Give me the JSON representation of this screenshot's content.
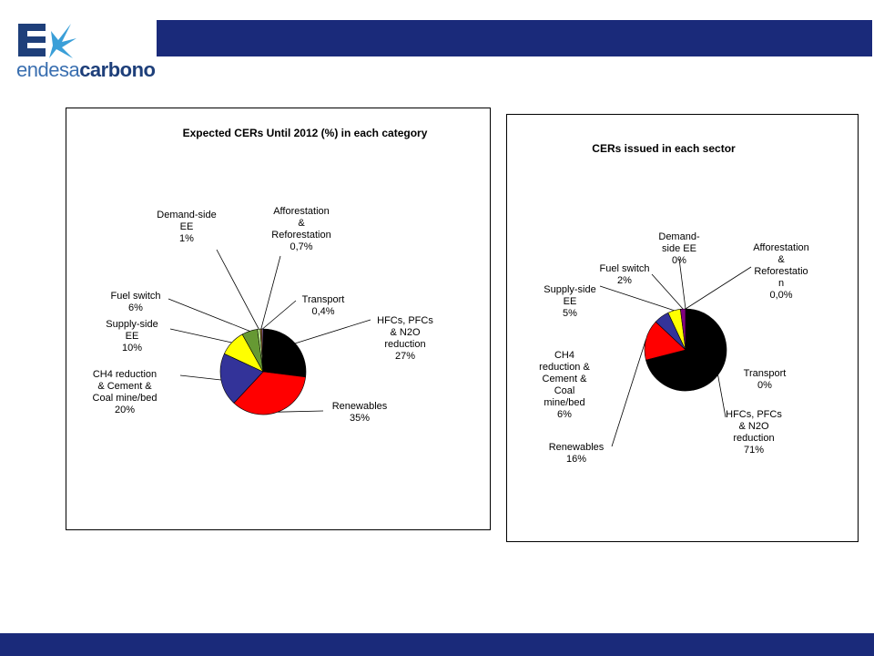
{
  "logo": {
    "name_part1": "endesa",
    "name_part2": "carbono"
  },
  "colors": {
    "brand_bar": "#1a2a7a"
  },
  "chart_data": [
    {
      "type": "pie",
      "title": "Expected CERs Until 2012 (%) in each category",
      "slices": [
        {
          "label": "HFCs, PFCs & N2O reduction",
          "value": 27,
          "value_label": "27%",
          "color": "#000000"
        },
        {
          "label": "Renewables",
          "value": 35,
          "value_label": "35%",
          "color": "#ff0000"
        },
        {
          "label": "CH4 reduction & Cement & Coal mine/bed",
          "value": 20,
          "value_label": "20%",
          "color": "#333399"
        },
        {
          "label": "Supply-side EE",
          "value": 10,
          "value_label": "10%",
          "color": "#ffff00"
        },
        {
          "label": "Fuel switch",
          "value": 6,
          "value_label": "6%",
          "color": "#669933"
        },
        {
          "label": "Demand-side EE",
          "value": 1,
          "value_label": "1%",
          "color": "#ccff99"
        },
        {
          "label": "Afforestation & Reforestation",
          "value": 0.7,
          "value_label": "0,7%",
          "color": "#996633"
        },
        {
          "label": "Transport",
          "value": 0.4,
          "value_label": "0,4%",
          "color": "#cc99ff"
        }
      ]
    },
    {
      "type": "pie",
      "title": "CERs issued in each sector",
      "slices": [
        {
          "label": "HFCs, PFCs & N2O reduction",
          "value": 71,
          "value_label": "71%",
          "color": "#000000"
        },
        {
          "label": "Renewables",
          "value": 16,
          "value_label": "16%",
          "color": "#ff0000"
        },
        {
          "label": "CH4 reduction & Cement & Coal mine/bed",
          "value": 6,
          "value_label": "6%",
          "color": "#333399"
        },
        {
          "label": "Supply-side EE",
          "value": 5,
          "value_label": "5%",
          "color": "#ffff00"
        },
        {
          "label": "Fuel switch",
          "value": 2,
          "value_label": "2%",
          "color": "#800080"
        },
        {
          "label": "Demand-side EE",
          "value": 0,
          "value_label": "0%",
          "color": "#669933"
        },
        {
          "label": "Afforestation & Reforestation",
          "value": 0,
          "value_label": "0,0%",
          "color": "#996633"
        },
        {
          "label": "Transport",
          "value": 0,
          "value_label": "0%",
          "color": "#cc99ff"
        }
      ]
    }
  ]
}
